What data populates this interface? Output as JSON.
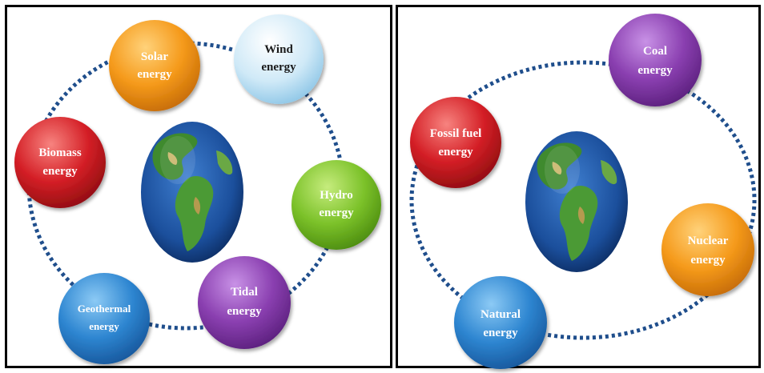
{
  "left_panel": {
    "nodes": [
      {
        "id": "solar",
        "lines": [
          "Solar",
          "energy"
        ],
        "color": "orange"
      },
      {
        "id": "wind",
        "lines": [
          "Wind",
          "energy"
        ],
        "color": "lightblue"
      },
      {
        "id": "hydro",
        "lines": [
          "Hydro",
          "energy"
        ],
        "color": "green"
      },
      {
        "id": "tidal",
        "lines": [
          "Tidal",
          "energy"
        ],
        "color": "purple"
      },
      {
        "id": "geothermal",
        "lines": [
          "Geothermal",
          "energy"
        ],
        "color": "blue"
      },
      {
        "id": "biomass",
        "lines": [
          "Biomass",
          "energy"
        ],
        "color": "red"
      }
    ]
  },
  "right_panel": {
    "nodes": [
      {
        "id": "coal",
        "lines": [
          "Coal",
          "energy"
        ],
        "color": "purple"
      },
      {
        "id": "fossil",
        "lines": [
          "Fossil fuel",
          "energy"
        ],
        "color": "red"
      },
      {
        "id": "nuclear",
        "lines": [
          "Nuclear",
          "energy"
        ],
        "color": "orange"
      },
      {
        "id": "natural",
        "lines": [
          "Natural",
          "energy"
        ],
        "color": "blue"
      }
    ]
  },
  "palette": {
    "orange": "#f59a1b",
    "lightblue": "#cfe9f7",
    "green": "#7cc22a",
    "purple": "#8a3fb0",
    "blue": "#2e86d1",
    "red": "#d41f26",
    "dots": "#1f4e8c"
  }
}
